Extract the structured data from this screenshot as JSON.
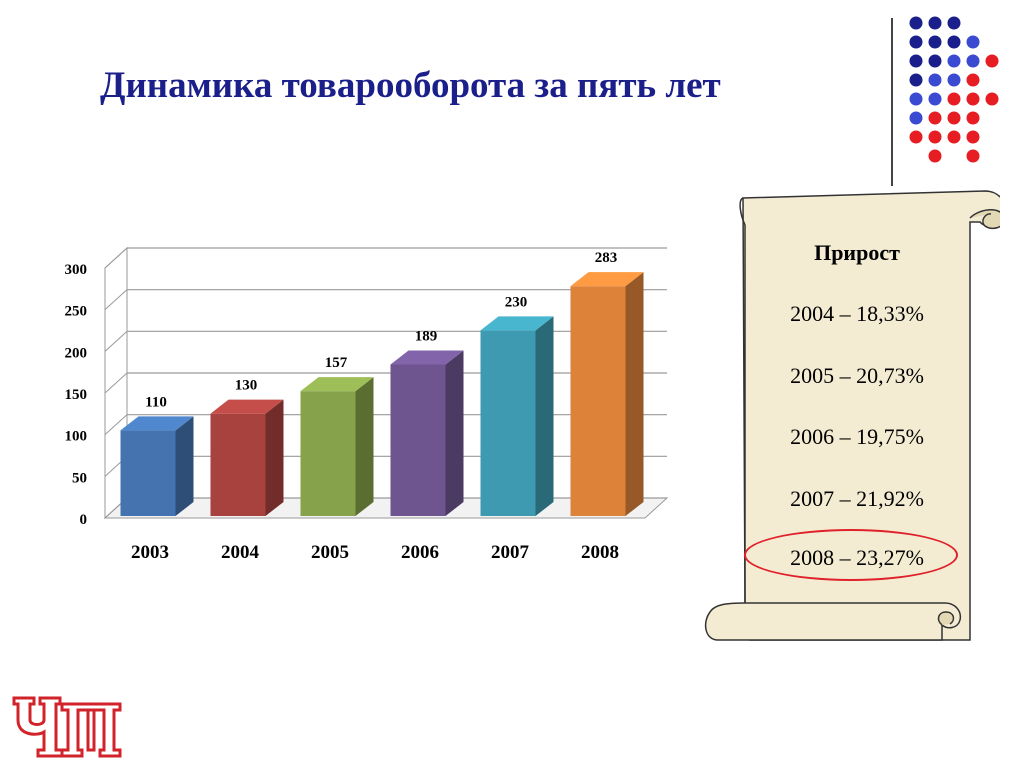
{
  "slide": {
    "title": "Динамика товарооборота за пять лет"
  },
  "panel": {
    "title": "Прирост",
    "items": [
      "2004 – 18,33%",
      "2005 – 20,73%",
      "2006 – 19,75%",
      "2007 – 21,92%",
      "2008 – 23,27%"
    ],
    "highlighted_item": "2008 – 23,27%"
  },
  "logo": {
    "text": "ЧРI",
    "color": "#d2232a"
  },
  "colors": {
    "title": "#1b1f8a",
    "scroll_fill": "#f3ecd3",
    "highlight_ring": "#e0212b",
    "dot_navy": "#1a1f8c",
    "dot_blue": "#3a4bd1",
    "dot_red": "#e61e24"
  },
  "chart_data": {
    "type": "bar",
    "style": "3d",
    "title": "",
    "xlabel": "",
    "ylabel": "",
    "categories": [
      "2003",
      "2004",
      "2005",
      "2006",
      "2007",
      "2008"
    ],
    "values": [
      110,
      130,
      157,
      189,
      230,
      283
    ],
    "data_labels": [
      "110",
      "130",
      "157",
      "189",
      "230",
      "283"
    ],
    "y_ticks": [
      0,
      50,
      100,
      150,
      200,
      250,
      300
    ],
    "ylim": [
      0,
      300
    ],
    "grid": true,
    "legend": "none",
    "bar_colors": [
      "#4473b0",
      "#a8423f",
      "#86a24a",
      "#6e5590",
      "#3e9ab0",
      "#dd8339"
    ]
  }
}
